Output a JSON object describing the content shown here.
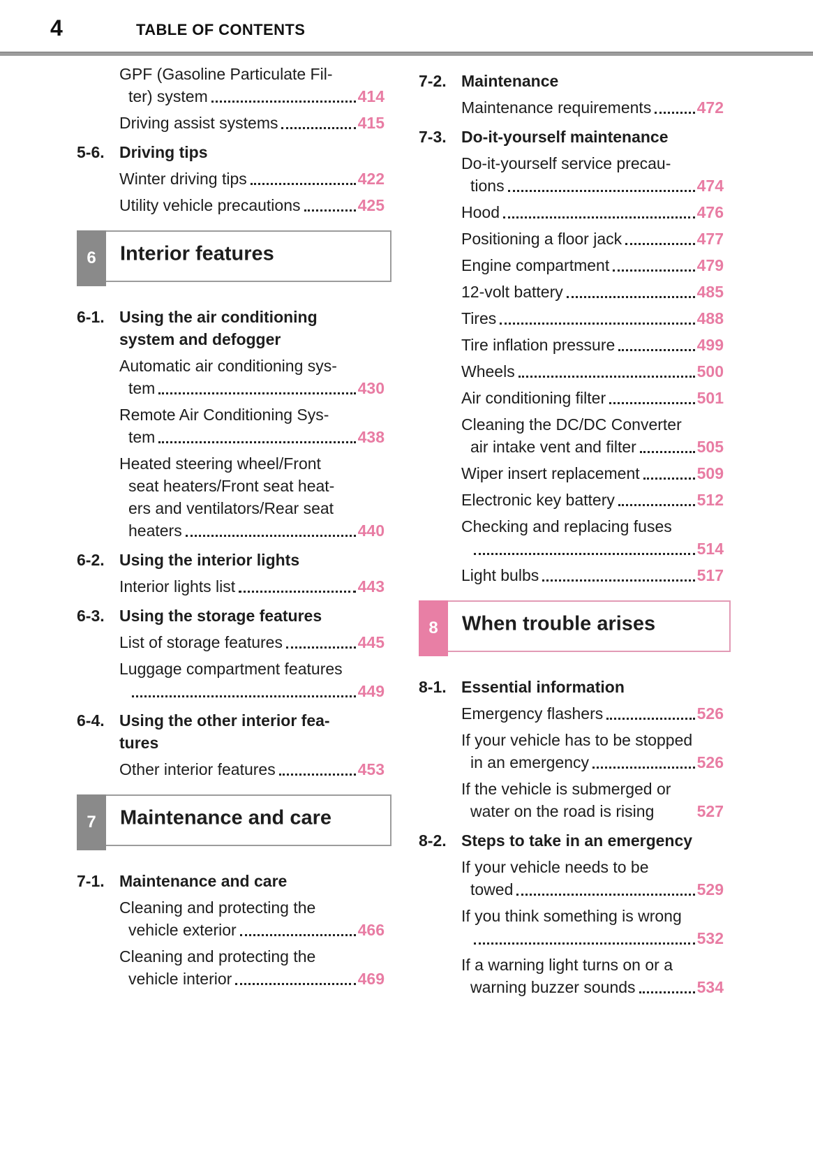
{
  "colors": {
    "accent_page_number_pink": "#e87ca3",
    "chapter_badge_gray": "#8a8a8a",
    "chapter_border_gray": "#9c9c9c",
    "chapter_badge_pink": "#e87fa5",
    "chapter_border_pink": "#e29ab5",
    "header_rule_gray": "#9c9c9c",
    "text": "#1d1d1d"
  },
  "header": {
    "page_number": "4",
    "title": "TABLE OF CONTENTS"
  },
  "columns": {
    "left": [
      {
        "type": "entry",
        "lines": [
          "GPF (Gasoline Particulate Fil-",
          "ter) system"
        ],
        "page": "414"
      },
      {
        "type": "entry",
        "lines": [
          "Driving assist systems"
        ],
        "page": "415"
      },
      {
        "type": "heading",
        "num": "5-6.",
        "lines": [
          "Driving tips"
        ]
      },
      {
        "type": "entry",
        "lines": [
          "Winter driving tips"
        ],
        "page": "422"
      },
      {
        "type": "entry",
        "lines": [
          "Utility vehicle precautions"
        ],
        "page": "425"
      },
      {
        "type": "chapter",
        "num": "6",
        "title": "Interior features",
        "variant": "gray"
      },
      {
        "type": "heading",
        "num": "6-1.",
        "lines": [
          "Using the air conditioning",
          "system and defogger"
        ]
      },
      {
        "type": "entry",
        "lines": [
          "Automatic air conditioning sys-",
          "tem"
        ],
        "page": "430"
      },
      {
        "type": "entry",
        "lines": [
          "Remote Air Conditioning Sys-",
          "tem"
        ],
        "page": "438"
      },
      {
        "type": "entry",
        "lines": [
          "Heated steering wheel/Front",
          "seat heaters/Front seat heat-",
          "ers and ventilators/Rear seat",
          "heaters"
        ],
        "page": "440"
      },
      {
        "type": "heading",
        "num": "6-2.",
        "lines": [
          "Using the interior lights"
        ]
      },
      {
        "type": "entry",
        "lines": [
          "Interior lights list"
        ],
        "page": "443"
      },
      {
        "type": "heading",
        "num": "6-3.",
        "lines": [
          "Using the storage features"
        ]
      },
      {
        "type": "entry",
        "lines": [
          "List of storage features"
        ],
        "page": "445"
      },
      {
        "type": "entry",
        "lines": [
          "Luggage compartment features",
          ""
        ],
        "page": "449"
      },
      {
        "type": "heading",
        "num": "6-4.",
        "lines": [
          "Using the other interior fea-",
          "tures"
        ]
      },
      {
        "type": "entry",
        "lines": [
          "Other interior features"
        ],
        "page": "453"
      },
      {
        "type": "chapter",
        "num": "7",
        "title": "Maintenance and care",
        "variant": "gray"
      },
      {
        "type": "heading",
        "num": "7-1.",
        "lines": [
          "Maintenance and care"
        ]
      },
      {
        "type": "entry",
        "lines": [
          "Cleaning and protecting the",
          "vehicle exterior"
        ],
        "page": "466"
      },
      {
        "type": "entry",
        "lines": [
          "Cleaning and protecting the",
          "vehicle interior"
        ],
        "page": "469"
      }
    ],
    "right": [
      {
        "type": "heading",
        "num": "7-2.",
        "lines": [
          "Maintenance"
        ]
      },
      {
        "type": "entry",
        "lines": [
          "Maintenance requirements"
        ],
        "page": "472"
      },
      {
        "type": "heading",
        "num": "7-3.",
        "lines": [
          "Do-it-yourself maintenance"
        ]
      },
      {
        "type": "entry",
        "lines": [
          "Do-it-yourself service precau-",
          "tions"
        ],
        "page": "474"
      },
      {
        "type": "entry",
        "lines": [
          "Hood"
        ],
        "page": "476"
      },
      {
        "type": "entry",
        "lines": [
          "Positioning a floor jack"
        ],
        "page": "477"
      },
      {
        "type": "entry",
        "lines": [
          "Engine compartment"
        ],
        "page": "479"
      },
      {
        "type": "entry",
        "lines": [
          "12-volt battery"
        ],
        "page": "485"
      },
      {
        "type": "entry",
        "lines": [
          "Tires"
        ],
        "page": "488"
      },
      {
        "type": "entry",
        "lines": [
          "Tire inflation pressure"
        ],
        "page": "499"
      },
      {
        "type": "entry",
        "lines": [
          "Wheels"
        ],
        "page": "500"
      },
      {
        "type": "entry",
        "lines": [
          "Air conditioning filter"
        ],
        "page": "501"
      },
      {
        "type": "entry",
        "lines": [
          "Cleaning the DC/DC Converter",
          "air intake vent and filter"
        ],
        "page": "505"
      },
      {
        "type": "entry",
        "lines": [
          "Wiper insert replacement"
        ],
        "page": "509"
      },
      {
        "type": "entry",
        "lines": [
          "Electronic key battery"
        ],
        "page": "512"
      },
      {
        "type": "entry",
        "lines": [
          "Checking and replacing fuses",
          ""
        ],
        "page": "514"
      },
      {
        "type": "entry",
        "lines": [
          "Light bulbs"
        ],
        "page": "517"
      },
      {
        "type": "chapter",
        "num": "8",
        "title": "When trouble arises",
        "variant": "pink"
      },
      {
        "type": "heading",
        "num": "8-1.",
        "lines": [
          "Essential information"
        ]
      },
      {
        "type": "entry",
        "lines": [
          "Emergency flashers"
        ],
        "page": "526"
      },
      {
        "type": "entry",
        "lines": [
          "If your vehicle has to be stopped",
          "in an emergency"
        ],
        "page": "526"
      },
      {
        "type": "entry",
        "lines": [
          "If the vehicle is submerged or",
          "water on the road is rising"
        ],
        "page": "527",
        "leader": false
      },
      {
        "type": "heading",
        "num": "8-2.",
        "lines": [
          "Steps to take in an emergency"
        ]
      },
      {
        "type": "entry",
        "lines": [
          "If your vehicle needs to be",
          "towed"
        ],
        "page": "529"
      },
      {
        "type": "entry",
        "lines": [
          "If you think something is wrong",
          ""
        ],
        "page": "532"
      },
      {
        "type": "entry",
        "lines": [
          "If a warning light turns on or a",
          "warning buzzer sounds"
        ],
        "page": "534"
      }
    ]
  }
}
